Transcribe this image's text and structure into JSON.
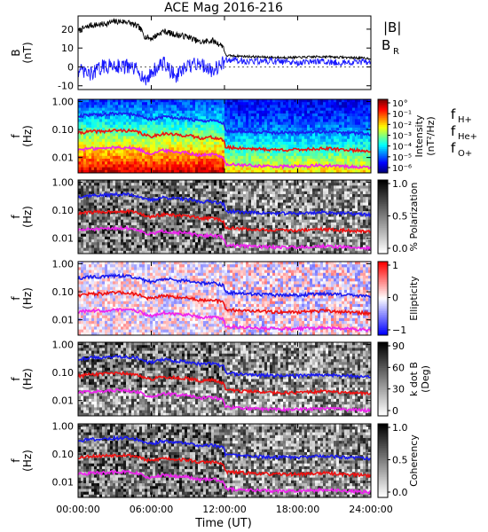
{
  "chart_data": {
    "type": "line",
    "title": "ACE Mag 2016-216",
    "xlabel": "Time (UT)",
    "x_ticks": [
      "00:00:00",
      "06:00:00",
      "12:00:00",
      "18:00:00",
      "24:00:00"
    ],
    "x_range_hours": [
      0,
      24
    ],
    "panels": [
      {
        "id": "B",
        "ylabel": [
          "B",
          "(nT)"
        ],
        "y_ticks": [
          "20",
          "10",
          "0",
          "-10"
        ],
        "ylim": [
          -12,
          27
        ],
        "legend": [
          {
            "text": "|B|",
            "color": "#000000"
          },
          {
            "text": "B",
            "sub": "R",
            "color": "#1a1aff"
          }
        ],
        "series": [
          {
            "name": "|B|",
            "color": "#000000",
            "x": [
              0,
              1,
              2,
              3,
              4,
              5,
              5.5,
              6,
              7,
              8,
              9,
              10,
              11,
              11.9,
              12.1,
              14,
              16,
              18,
              20,
              22,
              24
            ],
            "y": [
              19,
              22,
              22.5,
              24,
              24,
              21,
              16,
              15,
              19,
              17,
              16,
              13,
              14,
              11,
              6,
              5.5,
              5,
              5,
              5.5,
              5,
              4.5
            ]
          },
          {
            "name": "B_R",
            "color": "#1a1aff",
            "x": [
              0,
              1,
              2,
              3,
              4,
              5,
              5.5,
              6,
              7,
              8,
              9,
              10,
              11,
              11.9,
              12.1,
              14,
              16,
              18,
              20,
              22,
              24
            ],
            "y": [
              -2,
              -4,
              0,
              1,
              0,
              -2,
              -8,
              -3,
              2,
              -5,
              0,
              2,
              -2,
              2,
              4,
              3,
              3,
              2,
              3,
              2,
              3
            ]
          }
        ]
      },
      {
        "id": "intensity",
        "ylabel": [
          "f",
          "(Hz)"
        ],
        "y_ticks": [
          "1.00",
          "0.10",
          "0.01"
        ],
        "background": "spectrogram-jet",
        "colorbar": {
          "labels": [
            "10°",
            "10⁻¹",
            "10⁻²",
            "10⁻³",
            "10⁻⁴",
            "10⁻⁵",
            "10⁻⁶"
          ],
          "title": [
            "Intensity",
            "(nT²/Hz)"
          ],
          "scale": "jet"
        },
        "legend": [
          {
            "text": "f",
            "sub": "H+",
            "color": "#2222cc"
          },
          {
            "text": "f",
            "sub": "He+",
            "color": "#cc0000"
          },
          {
            "text": "f",
            "sub": "O+",
            "color": "#dd22dd"
          }
        ]
      },
      {
        "id": "polarization",
        "ylabel": [
          "f",
          "(Hz)"
        ],
        "y_ticks": [
          "1.00",
          "0.10",
          "0.01"
        ],
        "background": "noise-gray",
        "colorbar": {
          "labels": [
            "1.0",
            "0.5",
            "0.0"
          ],
          "title": [
            "% Polarization"
          ],
          "scale": "gray"
        }
      },
      {
        "id": "ellipticity",
        "ylabel": [
          "f",
          "(Hz)"
        ],
        "y_ticks": [
          "1.00",
          "0.10",
          "0.01"
        ],
        "background": "noise-redblue",
        "colorbar": {
          "labels": [
            "1",
            "0",
            "−1"
          ],
          "title": [
            "Ellipticity"
          ],
          "scale": "bwr"
        }
      },
      {
        "id": "kdotb",
        "ylabel": [
          "f",
          "(Hz)"
        ],
        "y_ticks": [
          "1.00",
          "0.10",
          "0.01"
        ],
        "background": "noise-gray",
        "colorbar": {
          "labels": [
            "90",
            "60",
            "30",
            "0"
          ],
          "title": [
            "k dot B",
            "(Deg)"
          ],
          "scale": "gray"
        }
      },
      {
        "id": "coherency",
        "ylabel": [
          "f",
          "(Hz)"
        ],
        "y_ticks": [
          "1.00",
          "0.10",
          "0.01"
        ],
        "background": "noise-gray",
        "colorbar": {
          "labels": [
            "1.0",
            "0.5",
            "0.0"
          ],
          "title": [
            "Coherency"
          ],
          "scale": "gray"
        }
      }
    ],
    "gyro_frequencies": {
      "x": [
        0,
        1,
        2,
        3,
        4,
        5,
        5.5,
        6,
        7,
        8,
        9,
        10,
        11,
        11.9,
        12.1,
        14,
        16,
        18,
        20,
        22,
        24
      ],
      "fH": [
        0.3,
        0.34,
        0.34,
        0.37,
        0.37,
        0.32,
        0.24,
        0.23,
        0.29,
        0.26,
        0.24,
        0.2,
        0.21,
        0.17,
        0.092,
        0.084,
        0.077,
        0.077,
        0.084,
        0.077,
        0.069
      ],
      "fHe": [
        0.075,
        0.085,
        0.086,
        0.092,
        0.092,
        0.08,
        0.061,
        0.057,
        0.072,
        0.065,
        0.061,
        0.05,
        0.053,
        0.042,
        0.023,
        0.021,
        0.019,
        0.019,
        0.021,
        0.019,
        0.017
      ],
      "fO": [
        0.019,
        0.021,
        0.021,
        0.023,
        0.023,
        0.02,
        0.015,
        0.014,
        0.018,
        0.016,
        0.015,
        0.012,
        0.013,
        0.0105,
        0.0057,
        0.0052,
        0.0048,
        0.0048,
        0.0052,
        0.0048,
        0.0043
      ]
    }
  }
}
